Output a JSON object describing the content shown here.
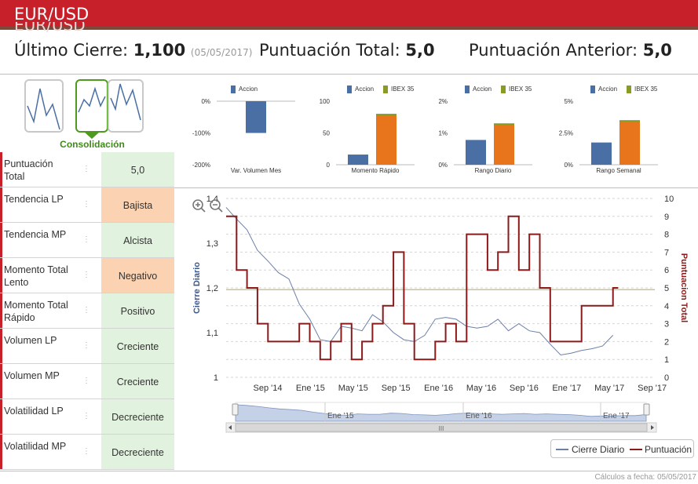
{
  "header": {
    "title": "EUR/USD",
    "ghost_title": "EUR/USD"
  },
  "stats": {
    "last_close_label": "Último Cierre:",
    "last_close_value": "1,100",
    "last_close_date": "(05/05/2017)",
    "total_score_label": "Puntuación Total:",
    "total_score_value": "5,0",
    "prev_score_label": "Puntuación Anterior:",
    "prev_score_value": "5,0"
  },
  "trend_selector": {
    "label": "Consolidación",
    "active_index": 1
  },
  "indicators": [
    {
      "name": "Puntuación Total",
      "value": "5,0",
      "tone": "pos"
    },
    {
      "name": "Tendencia LP",
      "value": "Bajista",
      "tone": "neg"
    },
    {
      "name": "Tendencia MP",
      "value": "Alcista",
      "tone": "pos"
    },
    {
      "name": "Momento Total Lento",
      "value": "Negativo",
      "tone": "neg"
    },
    {
      "name": "Momento Total Rápido",
      "value": "Positivo",
      "tone": "pos"
    },
    {
      "name": "Volumen LP",
      "value": "Creciente",
      "tone": "pos"
    },
    {
      "name": "Volumen MP",
      "value": "Creciente",
      "tone": "pos"
    },
    {
      "name": "Volatilidad LP",
      "value": "Decreciente",
      "tone": "pos"
    },
    {
      "name": "Volatilidad MP",
      "value": "Decreciente",
      "tone": "pos"
    }
  ],
  "info_icon": "info-dots-icon",
  "colors": {
    "brand_red": "#c8202a",
    "accion_blue": "#4a6fa5",
    "ibex_orange": "#e8741c",
    "ibex_legend_olive": "#8a9a24",
    "price_line": "#6b7fa8",
    "score_line": "#8b1a1a",
    "threshold_line": "#c8c49a",
    "positive_bg": "#e1f2de",
    "negative_bg": "#fbd3b2"
  },
  "mini_charts": [
    {
      "title": "Var. Volumen Mes",
      "legend": [
        "Accion"
      ],
      "yticks": [
        "0%",
        "-100%",
        "-200%"
      ],
      "ymin": -200,
      "ymax": 0,
      "bars": [
        {
          "series": "Accion",
          "value": -100
        }
      ]
    },
    {
      "title": "Momento Rápido",
      "legend": [
        "Accion",
        "IBEX 35"
      ],
      "yticks": [
        "100",
        "50",
        "0"
      ],
      "ymin": 0,
      "ymax": 100,
      "bars": [
        {
          "series": "Accion",
          "value": 16
        },
        {
          "series": "IBEX 35",
          "value": 80
        }
      ]
    },
    {
      "title": "Rango Diario",
      "legend": [
        "Accion",
        "IBEX 35"
      ],
      "yticks": [
        "2%",
        "1%",
        "0%"
      ],
      "ymin": 0,
      "ymax": 2,
      "bars": [
        {
          "series": "Accion",
          "value": 0.78
        },
        {
          "series": "IBEX 35",
          "value": 1.3
        }
      ]
    },
    {
      "title": "Rango Semanal",
      "legend": [
        "Accion",
        "IBEX 35"
      ],
      "yticks": [
        "5%",
        "2.5%",
        "0%"
      ],
      "ymin": 0,
      "ymax": 5,
      "bars": [
        {
          "series": "Accion",
          "value": 1.75
        },
        {
          "series": "IBEX 35",
          "value": 3.5
        }
      ]
    }
  ],
  "chart_data": {
    "type": "line",
    "ylabel_left": "Cierre Diario",
    "ylabel_right": "Puntuacion Total",
    "yticks_left": [
      "1,4",
      "1,3",
      "1,2",
      "1,1",
      "1"
    ],
    "yticks_right": [
      "10",
      "9",
      "8",
      "7",
      "6",
      "5",
      "4",
      "3",
      "2",
      "1",
      "0"
    ],
    "ylim_left": [
      1.0,
      1.4
    ],
    "ylim_right": [
      0,
      10
    ],
    "xticks": [
      "Sep '14",
      "Ene '15",
      "May '15",
      "Sep '15",
      "Ene '16",
      "May '16",
      "Sep '16",
      "Ene '17",
      "May '17",
      "Sep '17"
    ],
    "xlim": [
      0,
      38
    ],
    "reference_line_right": 4.9,
    "series": [
      {
        "name": "Cierre Diario",
        "x": [
          0,
          1,
          2,
          3,
          4,
          5,
          6,
          7,
          8,
          9,
          10,
          11,
          12,
          13,
          14,
          15,
          16,
          17,
          18,
          19,
          20,
          21,
          22,
          23,
          24,
          25,
          26,
          27,
          28,
          29,
          30,
          31,
          32,
          33,
          34,
          35,
          36,
          37
        ],
        "values": [
          1.38,
          1.36,
          1.33,
          1.29,
          1.26,
          1.24,
          1.22,
          1.17,
          1.13,
          1.09,
          1.08,
          1.12,
          1.11,
          1.11,
          1.14,
          1.13,
          1.1,
          1.09,
          1.08,
          1.1,
          1.13,
          1.14,
          1.13,
          1.12,
          1.11,
          1.12,
          1.13,
          1.11,
          1.12,
          1.11,
          1.1,
          1.08,
          1.05,
          1.06,
          1.06,
          1.07,
          1.07,
          1.1
        ]
      },
      {
        "name": "Puntuación",
        "x": [
          0,
          1,
          2,
          3,
          4,
          5,
          6,
          7,
          8,
          9,
          10,
          11,
          12,
          13,
          14,
          15,
          16,
          17,
          18,
          19,
          20,
          21,
          22,
          23,
          24,
          25,
          26,
          27,
          28,
          29,
          30,
          31,
          32,
          33,
          34,
          35,
          36,
          37
        ],
        "values": [
          9,
          6,
          5,
          3,
          2,
          2,
          2,
          3,
          2,
          1,
          2,
          3,
          1,
          2,
          3,
          4,
          7,
          3,
          1,
          1,
          2,
          3,
          2,
          8,
          8,
          6,
          7,
          9,
          6,
          8,
          5,
          2,
          2,
          2,
          4,
          4,
          4,
          5
        ]
      }
    ],
    "navigator_labels": [
      "Ene '15",
      "Ene '16",
      "Ene '17"
    ],
    "navigator_scroll_glyph": "III"
  },
  "zoom": {
    "in_icon": "zoom-in-icon",
    "out_icon": "zoom-out-icon"
  },
  "legend": {
    "price": "Cierre Diario",
    "score": "Puntuación"
  },
  "footer": {
    "text": "Cálculos a fecha: 05/05/2017"
  }
}
